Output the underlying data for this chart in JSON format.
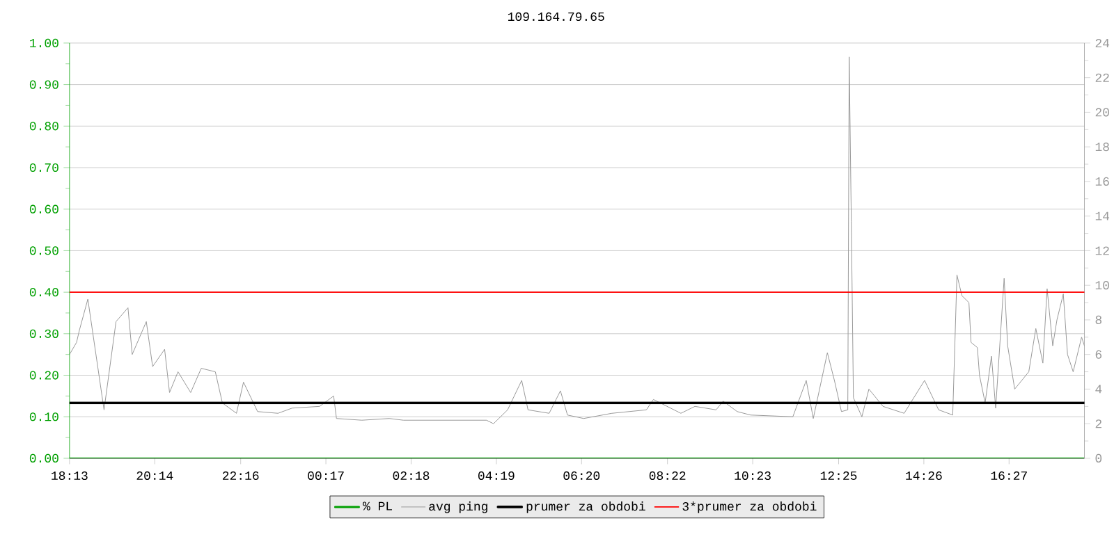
{
  "chart_data": {
    "type": "line",
    "title": "109.164.79.65",
    "x": [
      "--01-01T18:13",
      "--01-01T18:23",
      "--01-01T18:27",
      "--01-01T18:39",
      "--01-01T19:02",
      "--01-01T19:19",
      "--01-01T19:36",
      "--01-01T19:42",
      "--01-01T20:02",
      "--01-01T20:11",
      "--01-01T20:28",
      "--01-01T20:35",
      "--01-01T20:47",
      "--01-01T21:05",
      "--01-01T21:20",
      "--01-01T21:40",
      "--01-01T21:50",
      "--01-01T22:10",
      "--01-01T22:20",
      "--01-01T22:40",
      "--01-01T23:09",
      "--01-01T23:29",
      "--01-02T00:08",
      "--01-02T00:28",
      "--01-02T00:32",
      "--01-02T01:08",
      "--01-02T01:47",
      "--01-02T02:07",
      "--01-02T03:06",
      "--01-02T04:05",
      "--01-02T04:15",
      "--01-02T04:35",
      "--01-02T04:55",
      "--01-02T05:04",
      "--01-02T05:34",
      "--01-02T05:50",
      "--01-02T06:00",
      "--01-02T06:23",
      "--01-02T07:03",
      "--01-02T07:52",
      "--01-02T08:02",
      "--01-02T08:41",
      "--01-02T09:01",
      "--01-02T09:31",
      "--01-02T09:41",
      "--01-02T10:01",
      "--01-02T10:20",
      "--01-02T11:20",
      "--01-02T11:39",
      "--01-02T11:49",
      "--01-02T12:09",
      "--01-02T12:19",
      "--01-02T12:29",
      "--01-02T12:38",
      "--01-02T12:40",
      "--01-02T12:43",
      "--01-02T12:46",
      "--01-02T12:58",
      "--01-02T13:08",
      "--01-02T13:28",
      "--01-02T13:58",
      "--01-02T14:27",
      "--01-02T14:47",
      "--01-02T15:07",
      "--01-02T15:13",
      "--01-02T15:20",
      "--01-02T15:30",
      "--01-02T15:33",
      "--01-02T15:42",
      "--01-02T15:45",
      "--01-02T15:53",
      "--01-02T16:02",
      "--01-02T16:08",
      "--01-02T16:20",
      "--01-02T16:25",
      "--01-02T16:35",
      "--01-02T16:55",
      "--01-02T17:05",
      "--01-02T17:15",
      "--01-02T17:21",
      "--01-02T17:29",
      "--01-02T17:35",
      "--01-02T17:44",
      "--01-02T17:50",
      "--01-02T17:58",
      "--01-02T18:10",
      "--01-02T18:14"
    ],
    "series": [
      {
        "name": "% PL",
        "color": "#00a000",
        "axis": "y",
        "x": [
          "--01-01T18:13",
          "--01-02T18:14"
        ],
        "values": [
          0,
          0
        ]
      },
      {
        "name": "avg ping",
        "color": "#999999",
        "axis": "y2",
        "values": [
          6.0,
          6.7,
          7.4,
          9.2,
          2.8,
          7.9,
          8.7,
          6.0,
          7.9,
          5.3,
          6.3,
          3.8,
          5.0,
          3.8,
          5.2,
          5.0,
          3.2,
          2.6,
          4.4,
          2.7,
          2.6,
          2.9,
          3.0,
          3.6,
          2.3,
          2.2,
          2.3,
          2.2,
          2.2,
          2.2,
          2.0,
          2.8,
          4.5,
          2.8,
          2.6,
          3.9,
          2.5,
          2.3,
          2.6,
          2.8,
          3.4,
          2.6,
          3.0,
          2.8,
          3.3,
          2.7,
          2.5,
          2.4,
          4.5,
          2.3,
          6.1,
          4.5,
          2.7,
          2.8,
          23.2,
          13.7,
          3.5,
          2.4,
          4.0,
          3.0,
          2.6,
          4.5,
          2.8,
          2.5,
          10.6,
          9.4,
          9.0,
          6.7,
          6.4,
          4.8,
          3.2,
          5.9,
          2.9,
          10.4,
          6.5,
          4.0,
          5.0,
          7.5,
          5.5,
          9.8,
          6.5,
          8.0,
          9.5,
          6.0,
          5.0,
          7.0,
          6.5
        ]
      }
    ],
    "ref_lines": [
      {
        "axis": "y2",
        "value": 3.2,
        "label": "prumer za obdobi",
        "color": "#000000"
      },
      {
        "axis": "y2",
        "value": 9.6,
        "label": "3*prumer za obdobi",
        "color": "#ff0000"
      }
    ],
    "xlim": [
      "--01-01T18:13",
      "--01-02T18:14"
    ],
    "xticks": [
      {
        "value": "--01-01T18:13",
        "label": "18:13"
      },
      {
        "value": "--01-01T20:14",
        "label": "20:14"
      },
      {
        "value": "--01-01T22:16",
        "label": "22:16"
      },
      {
        "value": "--01-02T00:17",
        "label": "00:17"
      },
      {
        "value": "--01-02T02:18",
        "label": "02:18"
      },
      {
        "value": "--01-02T04:19",
        "label": "04:19"
      },
      {
        "value": "--01-02T06:20",
        "label": "06:20"
      },
      {
        "value": "--01-02T08:22",
        "label": "08:22"
      },
      {
        "value": "--01-02T10:23",
        "label": "10:23"
      },
      {
        "value": "--01-02T12:25",
        "label": "12:25"
      },
      {
        "value": "--01-02T14:26",
        "label": "14:26"
      },
      {
        "value": "--01-02T16:27",
        "label": "16:27"
      }
    ],
    "ylim": [
      0,
      1
    ],
    "yticks": [
      {
        "value": 0,
        "label": "0.00"
      },
      {
        "value": 0.1,
        "label": "0.10"
      },
      {
        "value": 0.2,
        "label": "0.20"
      },
      {
        "value": 0.3,
        "label": "0.30"
      },
      {
        "value": 0.4,
        "label": "0.40"
      },
      {
        "value": 0.5,
        "label": "0.50"
      },
      {
        "value": 0.6,
        "label": "0.60"
      },
      {
        "value": 0.7,
        "label": "0.70"
      },
      {
        "value": 0.8,
        "label": "0.80"
      },
      {
        "value": 0.9,
        "label": "0.90"
      },
      {
        "value": 1,
        "label": "1.00"
      }
    ],
    "y2lim": [
      0,
      24
    ],
    "y2ticks": [
      0,
      2,
      4,
      6,
      8,
      10,
      12,
      14,
      16,
      18,
      20,
      22,
      24
    ],
    "grid": "y",
    "legend": "bottom",
    "marker": "none",
    "line_style": "solid"
  }
}
